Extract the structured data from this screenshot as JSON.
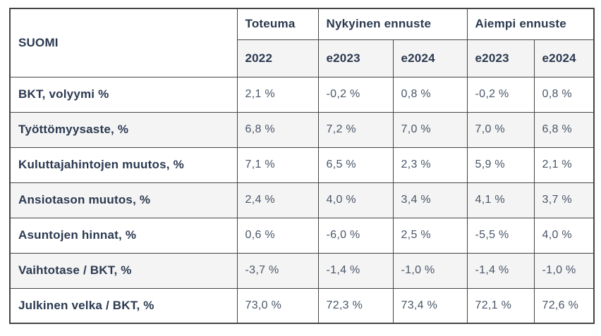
{
  "colors": {
    "heading_text": "#2b3950",
    "value_text": "#4a5668",
    "border": "#454545",
    "row_alt_bg": "#f4f4f4",
    "page_bg": "#ffffff"
  },
  "chart_data": {
    "type": "table",
    "title": "SUOMI",
    "column_groups": [
      {
        "label": "Toteuma",
        "span": 1
      },
      {
        "label": "Nykyinen ennuste",
        "span": 2
      },
      {
        "label": "Aiempi ennuste",
        "span": 2
      }
    ],
    "columns": [
      "2022",
      "e2023",
      "e2024",
      "e2023",
      "e2024"
    ],
    "rows": [
      {
        "label": "BKT, volyymi %",
        "values": [
          "2,1 %",
          "-0,2 %",
          "0,8 %",
          "-0,2 %",
          "0,8 %"
        ]
      },
      {
        "label": "Työttömyysaste, %",
        "values": [
          "6,8 %",
          "7,2 %",
          "7,0 %",
          "7,0 %",
          "6,8 %"
        ]
      },
      {
        "label": "Kuluttajahintojen muutos, %",
        "values": [
          "7,1 %",
          "6,5 %",
          "2,3 %",
          "5,9 %",
          "2,1 %"
        ]
      },
      {
        "label": "Ansiotason muutos, %",
        "values": [
          "2,4 %",
          "4,0 %",
          "3,4 %",
          "4,1 %",
          "3,7 %"
        ]
      },
      {
        "label": "Asuntojen hinnat, %",
        "values": [
          "0,6 %",
          "-6,0 %",
          "2,5 %",
          "-5,5 %",
          "4,0 %"
        ]
      },
      {
        "label": "Vaihtotase / BKT, %",
        "values": [
          "-3,7 %",
          "-1,4 %",
          "-1,0 %",
          "-1,4 %",
          "-1,0 %"
        ]
      },
      {
        "label": "Julkinen velka / BKT, %",
        "values": [
          "73,0 %",
          "72,3 %",
          "73,4 %",
          "72,1 %",
          "72,6 %"
        ]
      }
    ]
  }
}
